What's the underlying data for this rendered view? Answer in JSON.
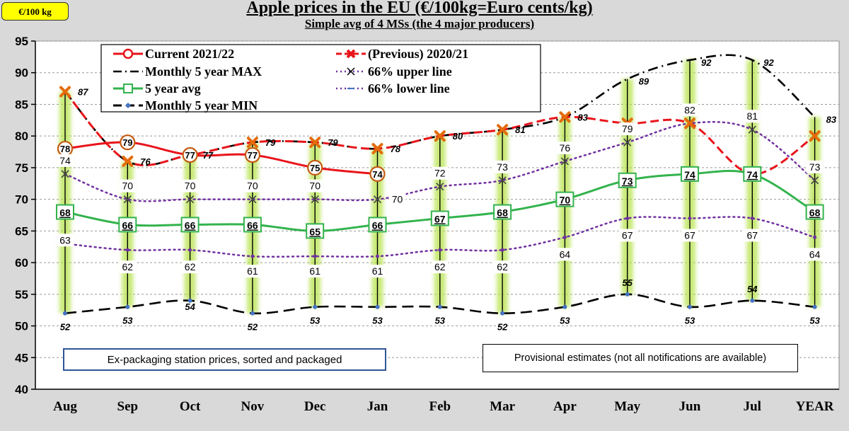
{
  "chart_data": {
    "type": "line",
    "title": "Apple prices in the EU (€/100kg=Euro cents/kg)",
    "subtitle": "Simple avg of 4 MSs (the 4 major producers)",
    "unit_badge": "€/100 kg",
    "ylim": [
      40,
      95
    ],
    "yticks": [
      40,
      45,
      50,
      55,
      60,
      65,
      70,
      75,
      80,
      85,
      90,
      95
    ],
    "categories": [
      "Aug",
      "Sep",
      "Oct",
      "Nov",
      "Dec",
      "Jan",
      "Feb",
      "Mar",
      "Apr",
      "May",
      "Jun",
      "Jul",
      "YEAR"
    ],
    "annotations": [
      "Ex-packaging station prices, sorted and packaged",
      "Provisional estimates (not all notifications are available)"
    ],
    "series": [
      {
        "name": "Current 2021/22",
        "color": "#e8141b",
        "values": [
          78,
          79,
          77,
          77,
          75,
          74,
          null,
          null,
          null,
          null,
          null,
          null,
          null
        ],
        "labels": [
          "78",
          "79",
          "77",
          "77",
          "75",
          "74"
        ]
      },
      {
        "name": "(Previous) 2020/21",
        "color": "#e8141b",
        "values": [
          87,
          76,
          77,
          79,
          79,
          78,
          80,
          81,
          83,
          82,
          82,
          74,
          80
        ],
        "labels": [
          "87",
          "76",
          "77",
          "79",
          "79",
          "78",
          "80",
          "81",
          "83",
          "",
          "",
          "",
          ""
        ]
      },
      {
        "name": "Monthly 5 year MAX",
        "color": "#000000",
        "values": [
          87,
          76,
          77,
          79,
          79,
          78,
          80,
          81,
          83,
          89,
          92,
          92,
          83
        ],
        "labels": [
          "",
          "",
          "",
          "",
          "",
          "",
          "",
          "",
          "",
          "89",
          "92",
          "92",
          "83"
        ]
      },
      {
        "name": "66% upper line",
        "color": "#7030a0",
        "values": [
          74,
          70,
          70,
          70,
          70,
          70,
          72,
          73,
          76,
          79,
          82,
          81,
          73
        ],
        "labels": [
          "74",
          "70",
          "70",
          "70",
          "70",
          "70",
          "72",
          "73",
          "76",
          "79",
          "82",
          "81",
          "73"
        ]
      },
      {
        "name": "5 year avg",
        "color": "#33b34d",
        "values": [
          68,
          66,
          66,
          66,
          65,
          66,
          67,
          68,
          70,
          73,
          74,
          74,
          68
        ],
        "labels": [
          "68",
          "66",
          "66",
          "66",
          "65",
          "66",
          "67",
          "68",
          "70",
          "73",
          "74",
          "74",
          "68"
        ]
      },
      {
        "name": "66% lower line",
        "color": "#7030a0",
        "values": [
          63,
          62,
          62,
          61,
          61,
          61,
          62,
          62,
          64,
          67,
          67,
          67,
          64
        ],
        "labels": [
          "63",
          "62",
          "62",
          "61",
          "61",
          "61",
          "62",
          "62",
          "64",
          "67",
          "67",
          "67",
          "64"
        ]
      },
      {
        "name": "Monthly 5 year MIN",
        "color": "#000000",
        "values": [
          52,
          53,
          54,
          52,
          53,
          53,
          53,
          52,
          53,
          55,
          53,
          54,
          53
        ],
        "labels": [
          "52",
          "53",
          "54",
          "52",
          "53",
          "53",
          "53",
          "52",
          "53",
          "55",
          "53",
          "54",
          "53"
        ]
      }
    ]
  }
}
